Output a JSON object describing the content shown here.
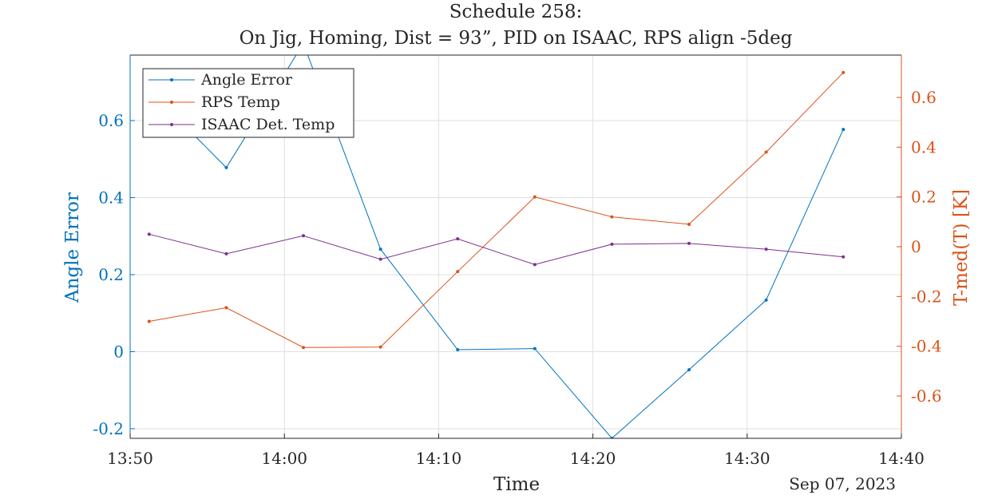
{
  "title_line1": "Schedule 258:",
  "title_line2": "On Jig, Homing, Dist = 93”, PID on ISAAC, RPS align -5deg",
  "colors": {
    "angle_error": "#0072BD",
    "rps_temp": "#D95319",
    "isaac_temp": "#7E2F8E",
    "axes": "#262626",
    "grid": "#DFDFDF"
  },
  "chart_data": {
    "type": "line",
    "title": "Schedule 258:\nOn Jig, Homing, Dist = 93”, PID on ISAAC, RPS align -5deg",
    "xlabel": "Time",
    "x_date_label": "Sep 07, 2023",
    "x_ticks": [
      "13:50",
      "14:00",
      "14:10",
      "14:20",
      "14:30",
      "14:40"
    ],
    "x_range": [
      "13:50",
      "14:40"
    ],
    "grid": true,
    "legend_placement": "top-left",
    "left_axis": {
      "label": "Angle Error",
      "ylim": [
        -0.225,
        0.77
      ],
      "ticks": [
        -0.2,
        0,
        0.2,
        0.4,
        0.6
      ],
      "tick_labels": [
        "-0.2",
        "0",
        "0.2",
        "0.4",
        "0.6"
      ]
    },
    "right_axis": {
      "label": "T-med(T) [K]",
      "ylim": [
        -0.77,
        0.77
      ],
      "ticks": [
        -0.6,
        -0.4,
        -0.2,
        0,
        0.2,
        0.4,
        0.6
      ],
      "tick_labels": [
        "-0.6",
        "-0.4",
        "-0.2",
        "0",
        "0.2",
        "0.4",
        "0.6"
      ]
    },
    "series": [
      {
        "name": "Angle Error",
        "axis": "left",
        "color": "#0072BD",
        "x": [
          "13:51:14",
          "13:56:14",
          "14:01:14",
          "14:06:14",
          "14:11:14",
          "14:16:14",
          "14:21:14",
          "14:26:14",
          "14:31:14",
          "14:36:14"
        ],
        "values": [
          0.68,
          0.478,
          0.8,
          0.266,
          0.005,
          0.008,
          -0.225,
          -0.047,
          0.134,
          0.577
        ]
      },
      {
        "name": "RPS Temp",
        "axis": "right",
        "color": "#D95319",
        "x": [
          "13:51:14",
          "13:56:14",
          "14:01:14",
          "14:06:14",
          "14:11:14",
          "14:16:14",
          "14:21:14",
          "14:26:14",
          "14:31:14",
          "14:36:14"
        ],
        "values": [
          -0.3,
          -0.245,
          -0.405,
          -0.403,
          -0.1,
          0.2,
          0.12,
          0.09,
          0.38,
          0.7
        ]
      },
      {
        "name": "ISAAC Det. Temp",
        "axis": "left",
        "color": "#7E2F8E",
        "x": [
          "13:51:14",
          "13:56:14",
          "14:01:14",
          "14:06:14",
          "14:11:14",
          "14:16:14",
          "14:21:14",
          "14:26:14",
          "14:31:14",
          "14:36:14"
        ],
        "values": [
          0.305,
          0.254,
          0.301,
          0.24,
          0.293,
          0.226,
          0.279,
          0.281,
          0.266,
          0.246
        ]
      }
    ]
  }
}
